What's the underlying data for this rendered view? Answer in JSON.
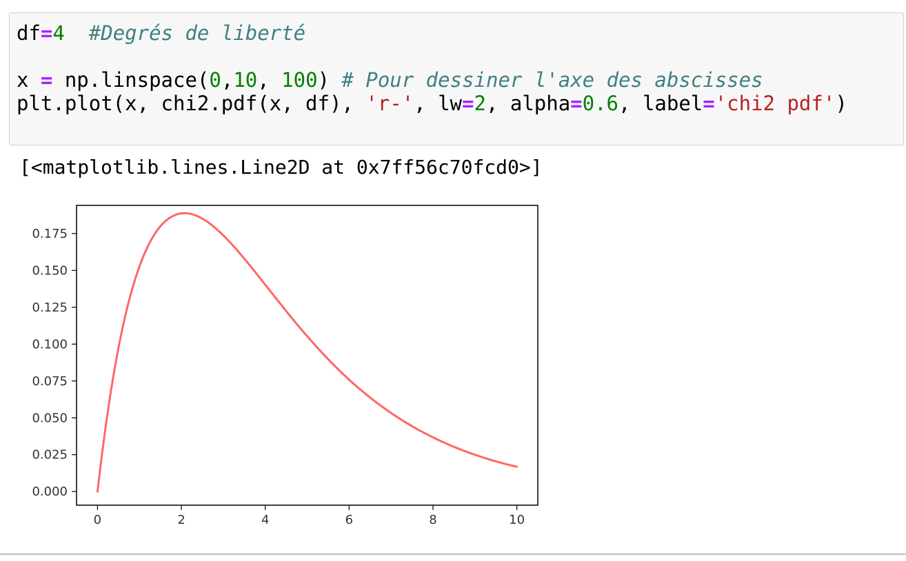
{
  "code_cell": {
    "lines": [
      [
        {
          "t": "df",
          "c": "plain"
        },
        {
          "t": "=",
          "c": "op"
        },
        {
          "t": "4",
          "c": "num"
        },
        {
          "t": "  ",
          "c": "plain"
        },
        {
          "t": "#Degrés de liberté",
          "c": "cm"
        }
      ],
      [],
      [
        {
          "t": "x ",
          "c": "plain"
        },
        {
          "t": "=",
          "c": "op"
        },
        {
          "t": " np.linspace(",
          "c": "plain"
        },
        {
          "t": "0",
          "c": "num"
        },
        {
          "t": ",",
          "c": "plain"
        },
        {
          "t": "10",
          "c": "num"
        },
        {
          "t": ", ",
          "c": "plain"
        },
        {
          "t": "100",
          "c": "num"
        },
        {
          "t": ") ",
          "c": "plain"
        },
        {
          "t": "# Pour dessiner l'axe des abscisses",
          "c": "cm"
        }
      ],
      [
        {
          "t": "plt.plot(x, chi2.pdf(x, df), ",
          "c": "plain"
        },
        {
          "t": "'r-'",
          "c": "str"
        },
        {
          "t": ", lw",
          "c": "plain"
        },
        {
          "t": "=",
          "c": "op"
        },
        {
          "t": "2",
          "c": "num"
        },
        {
          "t": ", alpha",
          "c": "plain"
        },
        {
          "t": "=",
          "c": "op"
        },
        {
          "t": "0.6",
          "c": "num"
        },
        {
          "t": ", label",
          "c": "plain"
        },
        {
          "t": "=",
          "c": "op"
        },
        {
          "t": "'chi2 pdf'",
          "c": "str"
        },
        {
          "t": ")",
          "c": "plain"
        }
      ]
    ]
  },
  "output": {
    "text": "[<matplotlib.lines.Line2D at 0x7ff56c70fcd0>]"
  },
  "chart_data": {
    "type": "line",
    "xlim": [
      -0.5,
      10.5
    ],
    "ylim": [
      -0.00925,
      0.1941
    ],
    "x_ticks": [
      0,
      2,
      4,
      6,
      8,
      10
    ],
    "x_tick_labels": [
      "0",
      "2",
      "4",
      "6",
      "8",
      "10"
    ],
    "y_ticks": [
      0,
      0.025,
      0.05,
      0.075,
      0.1,
      0.125,
      0.15,
      0.175
    ],
    "y_tick_labels": [
      "0.000",
      "0.025",
      "0.050",
      "0.075",
      "0.100",
      "0.125",
      "0.150",
      "0.175"
    ],
    "grid": false,
    "series": [
      {
        "color": "#ff0000",
        "alpha": 0.6,
        "x": [
          0,
          0.101,
          0.202,
          0.303,
          0.404,
          0.505,
          0.606,
          0.707,
          0.808,
          0.909,
          1.01,
          1.111,
          1.212,
          1.313,
          1.414,
          1.515,
          1.616,
          1.717,
          1.818,
          1.919,
          2.02,
          2.121,
          2.222,
          2.323,
          2.424,
          2.525,
          2.626,
          2.727,
          2.828,
          2.929,
          3.03,
          3.131,
          3.232,
          3.333,
          3.434,
          3.535,
          3.636,
          3.737,
          3.838,
          3.939,
          4.04,
          4.141,
          4.242,
          4.343,
          4.444,
          4.545,
          4.646,
          4.747,
          4.848,
          4.949,
          5.051,
          5.152,
          5.253,
          5.354,
          5.455,
          5.556,
          5.657,
          5.758,
          5.859,
          5.96,
          6.061,
          6.162,
          6.263,
          6.364,
          6.465,
          6.566,
          6.667,
          6.768,
          6.869,
          6.97,
          7.071,
          7.172,
          7.273,
          7.374,
          7.475,
          7.576,
          7.677,
          7.778,
          7.879,
          7.98,
          8.081,
          8.182,
          8.283,
          8.384,
          8.485,
          8.586,
          8.687,
          8.788,
          8.889,
          8.99,
          9.091,
          9.192,
          9.293,
          9.394,
          9.495,
          9.596,
          9.697,
          9.798,
          9.899,
          10
        ],
        "y": [
          0,
          0.02402,
          0.04569,
          0.06519,
          0.08268,
          0.09832,
          0.1122,
          0.1246,
          0.1355,
          0.1451,
          0.1535,
          0.1608,
          0.167,
          0.1724,
          0.1768,
          0.1805,
          0.1834,
          0.1856,
          0.1872,
          0.1883,
          0.1888,
          0.1888,
          0.1884,
          0.1875,
          0.1863,
          0.1847,
          0.1829,
          0.1807,
          0.1783,
          0.1757,
          0.1729,
          0.1699,
          0.1668,
          0.1636,
          0.1602,
          0.1568,
          0.1533,
          0.1497,
          0.1461,
          0.1425,
          0.1389,
          0.1352,
          0.1316,
          0.128,
          0.1244,
          0.1208,
          0.1173,
          0.1138,
          0.1104,
          0.107,
          0.1037,
          0.1005,
          0.09729,
          0.09417,
          0.09111,
          0.08813,
          0.08522,
          0.08238,
          0.07962,
          0.07693,
          0.07431,
          0.07177,
          0.06929,
          0.06689,
          0.06456,
          0.06229,
          0.06009,
          0.05796,
          0.05589,
          0.05389,
          0.05194,
          0.05006,
          0.04824,
          0.04647,
          0.04476,
          0.04311,
          0.04151,
          0.03997,
          0.03847,
          0.03702,
          0.03563,
          0.03428,
          0.03298,
          0.03172,
          0.03051,
          0.02934,
          0.02821,
          0.02712,
          0.02607,
          0.02506,
          0.02408,
          0.02314,
          0.02223,
          0.02136,
          0.02052,
          0.01971,
          0.01893,
          0.01818,
          0.01745,
          0.01684
        ]
      }
    ]
  }
}
